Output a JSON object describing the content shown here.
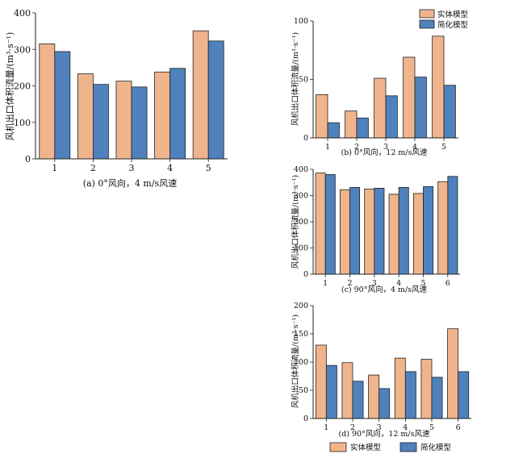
{
  "colors": {
    "solid": "#F0B48C",
    "simplified": "#4F81BD",
    "edge": "#222222"
  },
  "legend": {
    "solid_label": "实体模型",
    "simplified_label": "简化模型"
  },
  "chart_data": [
    {
      "type": "bar",
      "title": "(a) 0°风向，4 m/s风速",
      "ylabel": "风机出口体积流量/(m³·s⁻¹)",
      "ylim": [
        0,
        400
      ],
      "yticks": [
        0,
        100,
        200,
        300,
        400
      ],
      "categories": [
        "1",
        "2",
        "3",
        "4",
        "5"
      ],
      "series": [
        {
          "name": "实体模型",
          "values": [
            315,
            233,
            213,
            238,
            351
          ]
        },
        {
          "name": "简化模型",
          "values": [
            294,
            204,
            197,
            248,
            323
          ]
        }
      ],
      "legend": "none"
    },
    {
      "type": "bar",
      "title": "(b) 0°风向，12 m/s风速",
      "ylabel": "风机出口体积流量/(m³·s⁻¹)",
      "ylim": [
        0,
        100
      ],
      "yticks": [
        0,
        50,
        100
      ],
      "categories": [
        "1",
        "2",
        "3",
        "4",
        "5"
      ],
      "series": [
        {
          "name": "实体模型",
          "values": [
            37,
            23,
            51,
            69,
            87
          ]
        },
        {
          "name": "简化模型",
          "values": [
            13,
            17,
            36,
            52,
            45
          ]
        }
      ],
      "legend": "top-right"
    },
    {
      "type": "bar",
      "title": "(c) 90°风向，4 m/s风速",
      "ylabel": "风机出口体积流量/(m³·s⁻¹)",
      "ylim": [
        0,
        400
      ],
      "yticks": [
        0,
        100,
        200,
        300,
        400
      ],
      "categories": [
        "1",
        "2",
        "3",
        "4",
        "5",
        "6"
      ],
      "series": [
        {
          "name": "实体模型",
          "values": [
            386,
            322,
            325,
            305,
            308,
            353
          ]
        },
        {
          "name": "简化模型",
          "values": [
            380,
            331,
            328,
            331,
            334,
            373
          ]
        }
      ],
      "legend": "none"
    },
    {
      "type": "bar",
      "title": "(d) 90°风向，12 m/s风速",
      "ylabel": "风机出口体积流量/(m³·s⁻¹)",
      "ylim": [
        0,
        200
      ],
      "yticks": [
        0,
        50,
        100,
        150,
        200
      ],
      "categories": [
        "1",
        "2",
        "3",
        "4",
        "5",
        "6"
      ],
      "series": [
        {
          "name": "实体模型",
          "values": [
            130,
            99,
            77,
            107,
            105,
            159
          ]
        },
        {
          "name": "简化模型",
          "values": [
            94,
            66,
            53,
            83,
            73,
            83
          ]
        }
      ],
      "legend": "bottom"
    }
  ]
}
